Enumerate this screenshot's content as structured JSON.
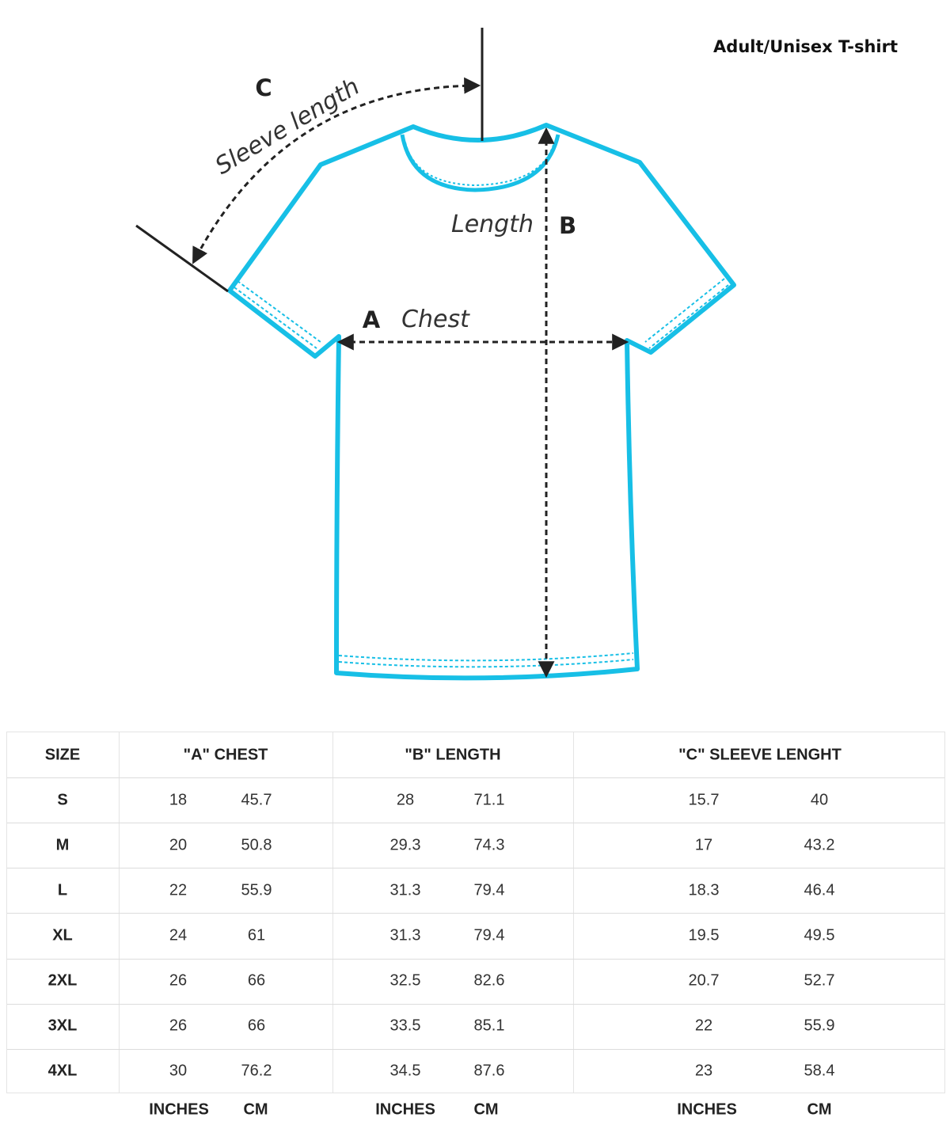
{
  "title": "Adult/Unisex T-shirt",
  "colors": {
    "shirt_outline": "#17bfe6",
    "arrows": "#222222"
  },
  "diagram": {
    "sleeve_letter": "C",
    "sleeve_label": "Sleeve length",
    "length_label": "Length",
    "length_letter": "B",
    "chest_letter": "A",
    "chest_label": "Chest"
  },
  "table": {
    "headers": [
      "SIZE",
      "\"A\" CHEST",
      "\"B\" LENGTH",
      "\"C\" SLEEVE LENGHT"
    ],
    "rows": [
      {
        "size": "S",
        "chest_in": "18",
        "chest_cm": "45.7",
        "length_in": "28",
        "length_cm": "71.1",
        "sleeve_in": "15.7",
        "sleeve_cm": "40"
      },
      {
        "size": "M",
        "chest_in": "20",
        "chest_cm": "50.8",
        "length_in": "29.3",
        "length_cm": "74.3",
        "sleeve_in": "17",
        "sleeve_cm": "43.2"
      },
      {
        "size": "L",
        "chest_in": "22",
        "chest_cm": "55.9",
        "length_in": "31.3",
        "length_cm": "79.4",
        "sleeve_in": "18.3",
        "sleeve_cm": "46.4"
      },
      {
        "size": "XL",
        "chest_in": "24",
        "chest_cm": "61",
        "length_in": "31.3",
        "length_cm": "79.4",
        "sleeve_in": "19.5",
        "sleeve_cm": "49.5"
      },
      {
        "size": "2XL",
        "chest_in": "26",
        "chest_cm": "66",
        "length_in": "32.5",
        "length_cm": "82.6",
        "sleeve_in": "20.7",
        "sleeve_cm": "52.7"
      },
      {
        "size": "3XL",
        "chest_in": "26",
        "chest_cm": "66",
        "length_in": "33.5",
        "length_cm": "85.1",
        "sleeve_in": "22",
        "sleeve_cm": "55.9"
      },
      {
        "size": "4XL",
        "chest_in": "30",
        "chest_cm": "76.2",
        "length_in": "34.5",
        "length_cm": "87.6",
        "sleeve_in": "23",
        "sleeve_cm": "58.4"
      }
    ],
    "units": [
      "INCHES",
      "CM",
      "INCHES",
      "CM",
      "INCHES",
      "CM"
    ]
  }
}
